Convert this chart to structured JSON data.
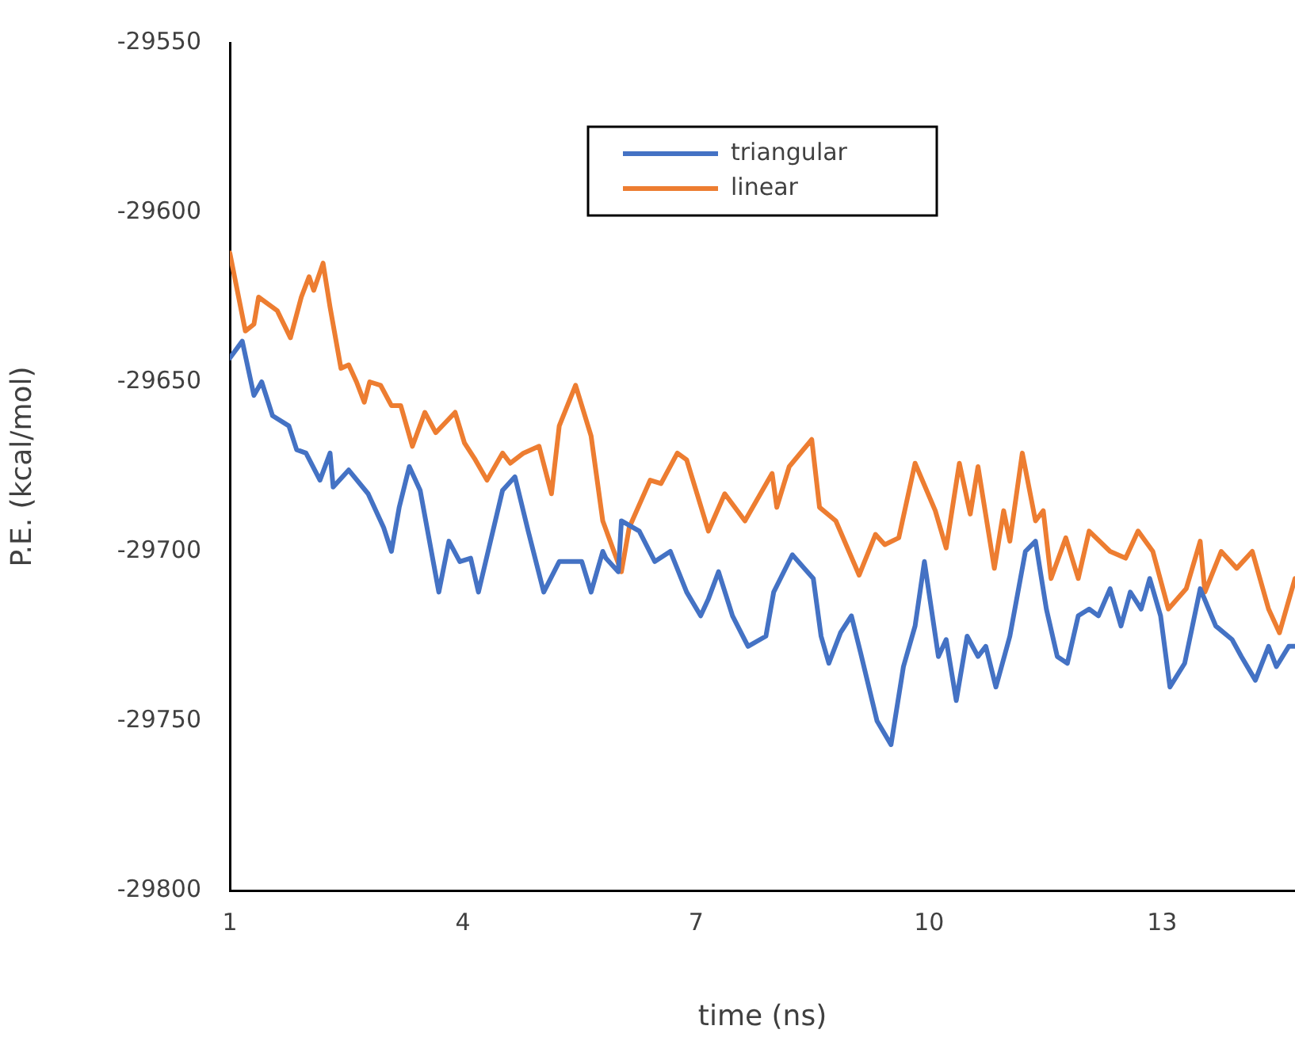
{
  "chart_data": {
    "type": "line",
    "xlabel": "time (ns)",
    "ylabel": "P.E. (kcal/mol)",
    "xlim": [
      1,
      14.71
    ],
    "xticks": [
      1,
      4,
      7,
      10,
      13
    ],
    "ylim": [
      -29800,
      -29550
    ],
    "yticks": [
      -29800,
      -29750,
      -29700,
      -29650,
      -29600,
      -29550
    ],
    "grid": false,
    "legend": "top",
    "marker": "none",
    "line_style": "solid",
    "series": [
      {
        "name": "triangular",
        "color": "#4472c4",
        "x": [
          1.0,
          1.16,
          1.31,
          1.41,
          1.55,
          1.76,
          1.86,
          1.98,
          2.16,
          2.29,
          2.33,
          2.53,
          2.78,
          2.98,
          3.08,
          3.18,
          3.31,
          3.45,
          3.69,
          3.82,
          3.96,
          4.1,
          4.2,
          4.51,
          4.67,
          4.84,
          5.04,
          5.24,
          5.53,
          5.65,
          5.8,
          5.84,
          6.0,
          6.04,
          6.27,
          6.47,
          6.67,
          6.88,
          7.06,
          7.16,
          7.29,
          7.47,
          7.67,
          7.9,
          8.0,
          8.24,
          8.51,
          8.61,
          8.71,
          8.86,
          9.0,
          9.12,
          9.33,
          9.51,
          9.67,
          9.82,
          9.94,
          10.12,
          10.22,
          10.35,
          10.49,
          10.63,
          10.73,
          10.86,
          11.04,
          11.24,
          11.37,
          11.51,
          11.65,
          11.78,
          11.92,
          12.06,
          12.18,
          12.33,
          12.47,
          12.59,
          12.73,
          12.84,
          12.98,
          13.1,
          13.29,
          13.49,
          13.69,
          13.9,
          14.02,
          14.2,
          14.37,
          14.47,
          14.63,
          14.71
        ],
        "values": [
          -29643,
          -29638,
          -29654,
          -29650,
          -29660,
          -29663,
          -29670,
          -29671,
          -29679,
          -29671,
          -29681,
          -29676,
          -29683,
          -29693,
          -29700,
          -29687,
          -29675,
          -29682,
          -29712,
          -29697,
          -29703,
          -29702,
          -29712,
          -29682,
          -29678,
          -29694,
          -29712,
          -29703,
          -29703,
          -29712,
          -29700,
          -29702,
          -29706,
          -29691,
          -29694,
          -29703,
          -29700,
          -29712,
          -29719,
          -29714,
          -29706,
          -29719,
          -29728,
          -29725,
          -29712,
          -29701,
          -29708,
          -29725,
          -29733,
          -29724,
          -29719,
          -29730,
          -29750,
          -29757,
          -29734,
          -29722,
          -29703,
          -29731,
          -29726,
          -29744,
          -29725,
          -29731,
          -29728,
          -29740,
          -29725,
          -29700,
          -29697,
          -29717,
          -29731,
          -29733,
          -29719,
          -29717,
          -29719,
          -29711,
          -29722,
          -29712,
          -29717,
          -29708,
          -29719,
          -29740,
          -29733,
          -29711,
          -29722,
          -29726,
          -29731,
          -29738,
          -29728,
          -29734,
          -29728,
          -29728
        ]
      },
      {
        "name": "linear",
        "color": "#ed7d31",
        "x": [
          1.0,
          1.2,
          1.31,
          1.37,
          1.61,
          1.78,
          1.92,
          2.02,
          2.08,
          2.2,
          2.29,
          2.43,
          2.53,
          2.63,
          2.73,
          2.8,
          2.94,
          3.08,
          3.2,
          3.35,
          3.51,
          3.65,
          3.9,
          4.02,
          4.16,
          4.31,
          4.51,
          4.61,
          4.78,
          4.98,
          5.14,
          5.24,
          5.45,
          5.65,
          5.8,
          6.04,
          6.14,
          6.41,
          6.55,
          6.76,
          6.88,
          7.16,
          7.37,
          7.63,
          7.78,
          7.98,
          8.04,
          8.2,
          8.49,
          8.59,
          8.8,
          9.1,
          9.31,
          9.43,
          9.61,
          9.82,
          10.08,
          10.22,
          10.39,
          10.53,
          10.63,
          10.84,
          10.96,
          11.04,
          11.2,
          11.37,
          11.47,
          11.57,
          11.76,
          11.92,
          12.06,
          12.33,
          12.53,
          12.69,
          12.88,
          13.08,
          13.31,
          13.49,
          13.55,
          13.76,
          13.96,
          14.16,
          14.37,
          14.51,
          14.71
        ],
        "values": [
          -29612,
          -29635,
          -29633,
          -29625,
          -29629,
          -29637,
          -29625,
          -29619,
          -29623,
          -29615,
          -29628,
          -29646,
          -29645,
          -29650,
          -29656,
          -29650,
          -29651,
          -29657,
          -29657,
          -29669,
          -29659,
          -29665,
          -29659,
          -29668,
          -29673,
          -29679,
          -29671,
          -29674,
          -29671,
          -29669,
          -29683,
          -29663,
          -29651,
          -29666,
          -29691,
          -29706,
          -29693,
          -29679,
          -29680,
          -29671,
          -29673,
          -29694,
          -29683,
          -29691,
          -29685,
          -29677,
          -29687,
          -29675,
          -29667,
          -29687,
          -29691,
          -29707,
          -29695,
          -29698,
          -29696,
          -29674,
          -29688,
          -29699,
          -29674,
          -29689,
          -29675,
          -29705,
          -29688,
          -29697,
          -29671,
          -29691,
          -29688,
          -29708,
          -29696,
          -29708,
          -29694,
          -29700,
          -29702,
          -29694,
          -29700,
          -29717,
          -29711,
          -29697,
          -29712,
          -29700,
          -29705,
          -29700,
          -29717,
          -29724,
          -29708
        ]
      }
    ]
  }
}
